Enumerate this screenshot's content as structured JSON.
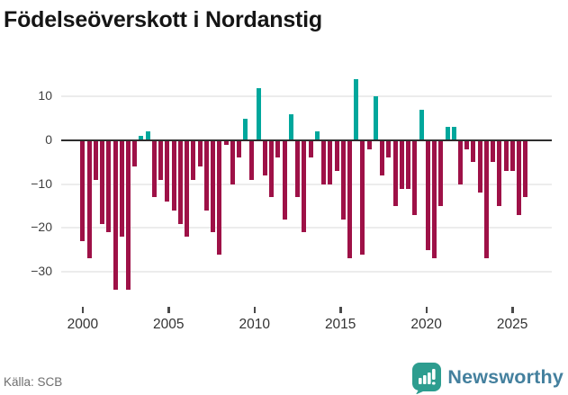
{
  "title": "Födelseöverskott i Nordanstig",
  "footer": {
    "source": "Källa: SCB",
    "brand": "Newsworthy",
    "brand_colors": {
      "icon": "#2d9d8f",
      "text": "#44809e"
    }
  },
  "chart_data": {
    "type": "bar",
    "title": "Födelseöverskott i Nordanstig",
    "xlabel": "",
    "ylabel": "",
    "x_start_year": 2000.0,
    "x_step_years": 0.379,
    "values": [
      -23,
      -27,
      -9,
      -19,
      -21,
      -34,
      -22,
      -34,
      -6,
      1,
      2,
      -13,
      -9,
      -14,
      -16,
      -19,
      -22,
      -9,
      -6,
      -16,
      -21,
      -26,
      -1,
      -10,
      -4,
      5,
      -9,
      12,
      -8,
      -13,
      -4,
      -18,
      6,
      -13,
      -21,
      -4,
      2,
      -10,
      -10,
      -7,
      -18,
      -27,
      14,
      -26,
      -2,
      10,
      -8,
      -4,
      -15,
      -11,
      -11,
      -17,
      7,
      -25,
      -27,
      -15,
      3,
      3,
      -10,
      -2,
      -5,
      -12,
      -27,
      -5,
      -15,
      -7,
      -7,
      -17,
      -13
    ],
    "yticks": [
      10,
      0,
      -10,
      -20,
      -30
    ],
    "xticks": [
      2000,
      2005,
      2010,
      2015,
      2020,
      2025
    ],
    "ylim": [
      -36,
      15
    ],
    "xlim": [
      1998.75,
      2027.3
    ],
    "grid": "horizontal",
    "legend": "none",
    "colors": {
      "positive": "#00a79c",
      "negative": "#9e1147"
    }
  }
}
